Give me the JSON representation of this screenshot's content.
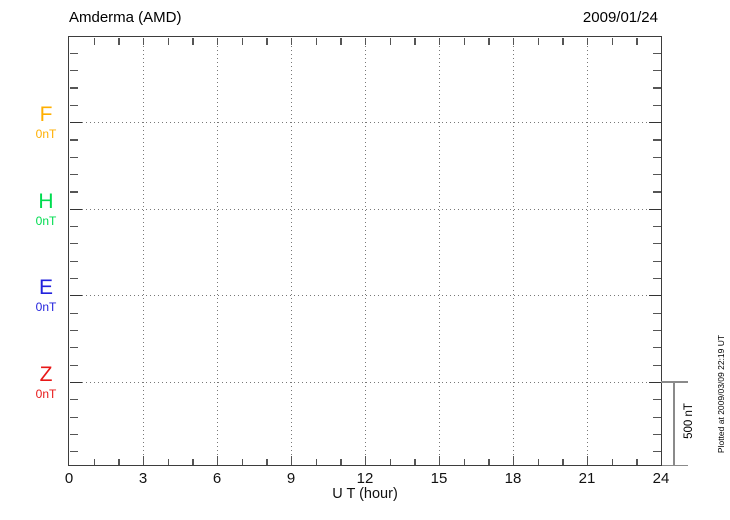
{
  "header": {
    "title": "Amderma (AMD)",
    "date": "2009/01/24"
  },
  "channels": [
    {
      "label": "F",
      "value": "0nT",
      "color": "#FFAF00"
    },
    {
      "label": "H",
      "value": "0nT",
      "color": "#00DC50"
    },
    {
      "label": "E",
      "value": "0nT",
      "color": "#2222DD"
    },
    {
      "label": "Z",
      "value": "0nT",
      "color": "#E81818"
    }
  ],
  "x_axis": {
    "label": "U T (hour)",
    "tick_labels": [
      "0",
      "3",
      "6",
      "9",
      "12",
      "15",
      "18",
      "21",
      "24"
    ],
    "tick_hours": [
      0,
      3,
      6,
      9,
      12,
      15,
      18,
      21,
      24
    ]
  },
  "scale_bar": {
    "label": "500 nT"
  },
  "note": {
    "text": "Plotted at 2009/03/09 22:19 UT"
  },
  "chart_data": {
    "type": "line",
    "title": "Amderma (AMD)",
    "station": "Amderma",
    "station_code": "AMD",
    "date": "2009/01/24",
    "xlabel": "U T (hour)",
    "xlim": [
      0,
      24
    ],
    "x_ticks": [
      0,
      3,
      6,
      9,
      12,
      15,
      18,
      21,
      24
    ],
    "x_minor_tick_step_hours": 1,
    "grid": true,
    "grid_style": "dotted",
    "series": [
      {
        "name": "F",
        "baseline_label": "0nT",
        "color": "#FFAF00",
        "values": []
      },
      {
        "name": "H",
        "baseline_label": "0nT",
        "color": "#00DC50",
        "values": []
      },
      {
        "name": "E",
        "baseline_label": "0nT",
        "color": "#2222DD",
        "values": []
      },
      {
        "name": "Z",
        "baseline_label": "0nT",
        "color": "#E81818",
        "values": []
      }
    ],
    "y_scale_bar": {
      "label": "500 nT",
      "value_nT": 500
    },
    "y_minor_tick_nT": 100,
    "annotation": "Plotted at 2009/03/09 22:19 UT",
    "data_plotted": false
  }
}
